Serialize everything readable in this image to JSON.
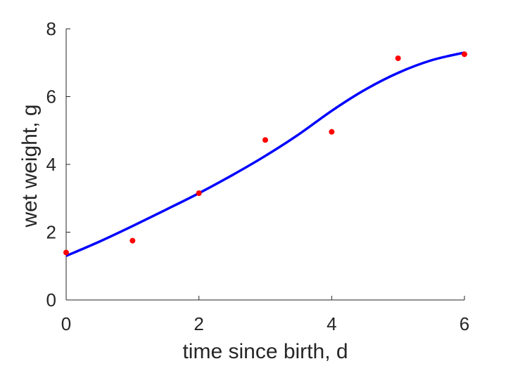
{
  "chart_data": {
    "type": "scatter",
    "xlabel": "time since birth, d",
    "ylabel": "wet weight, g",
    "xlim": [
      0,
      6
    ],
    "ylim": [
      0,
      8
    ],
    "xticks": [
      "0",
      "2",
      "4",
      "6"
    ],
    "yticks": [
      "0",
      "2",
      "4",
      "6",
      "8"
    ],
    "grid": false,
    "legend": "none",
    "series": [
      {
        "kind": "points",
        "color": "#ff0000",
        "x": [
          0,
          1,
          2,
          3,
          4,
          5,
          6
        ],
        "y": [
          1.4,
          1.75,
          3.15,
          4.72,
          4.96,
          7.13,
          7.25
        ]
      },
      {
        "kind": "line",
        "color": "#0000ff",
        "x": [
          0,
          0.5,
          1,
          1.5,
          2,
          2.5,
          3,
          3.5,
          4,
          4.5,
          5,
          5.5,
          6
        ],
        "y": [
          1.3,
          1.72,
          2.18,
          2.66,
          3.15,
          3.68,
          4.25,
          4.88,
          5.58,
          6.2,
          6.7,
          7.07,
          7.3
        ]
      }
    ]
  }
}
